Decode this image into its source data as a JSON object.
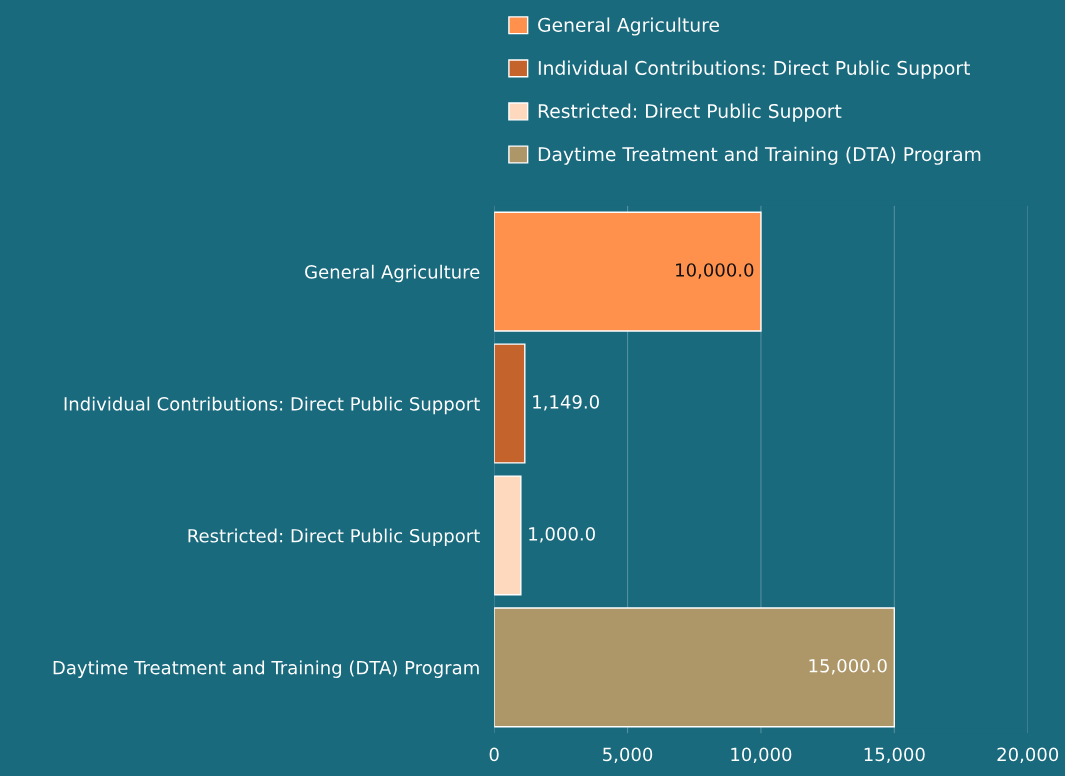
{
  "chart_data": {
    "type": "bar",
    "orientation": "horizontal",
    "categories": [
      "General Agriculture",
      "Individual Contributions: Direct Public Support",
      "Restricted: Direct Public Support",
      "Daytime Treatment and Training (DTA) Program"
    ],
    "series": [
      {
        "name": "General Agriculture",
        "color": "#ff914d",
        "values": [
          10000,
          null,
          null,
          null
        ],
        "value_labels": [
          "10,000.0",
          null,
          null,
          null
        ]
      },
      {
        "name": "Individual Contributions: Direct Public Support",
        "color": "#c4632b",
        "values": [
          null,
          1149,
          null,
          null
        ],
        "value_labels": [
          null,
          "1,149.0",
          null,
          null
        ]
      },
      {
        "name": "Restricted: Direct Public Support",
        "color": "#ffd9bd",
        "values": [
          null,
          null,
          1000,
          null
        ],
        "value_labels": [
          null,
          null,
          "1,000.0",
          null
        ]
      },
      {
        "name": "Daytime Treatment and Training (DTA) Program",
        "color": "#ad9668",
        "values": [
          null,
          null,
          null,
          15000
        ],
        "value_labels": [
          null,
          null,
          null,
          "15,000.0"
        ]
      }
    ],
    "xlim": [
      0,
      20000
    ],
    "xticks": [
      {
        "value": 0,
        "label": "0"
      },
      {
        "value": 5000,
        "label": "5,000"
      },
      {
        "value": 10000,
        "label": "10,000"
      },
      {
        "value": 15000,
        "label": "15,000"
      },
      {
        "value": 20000,
        "label": "20,000"
      }
    ],
    "grid": "x",
    "legend": "top"
  }
}
